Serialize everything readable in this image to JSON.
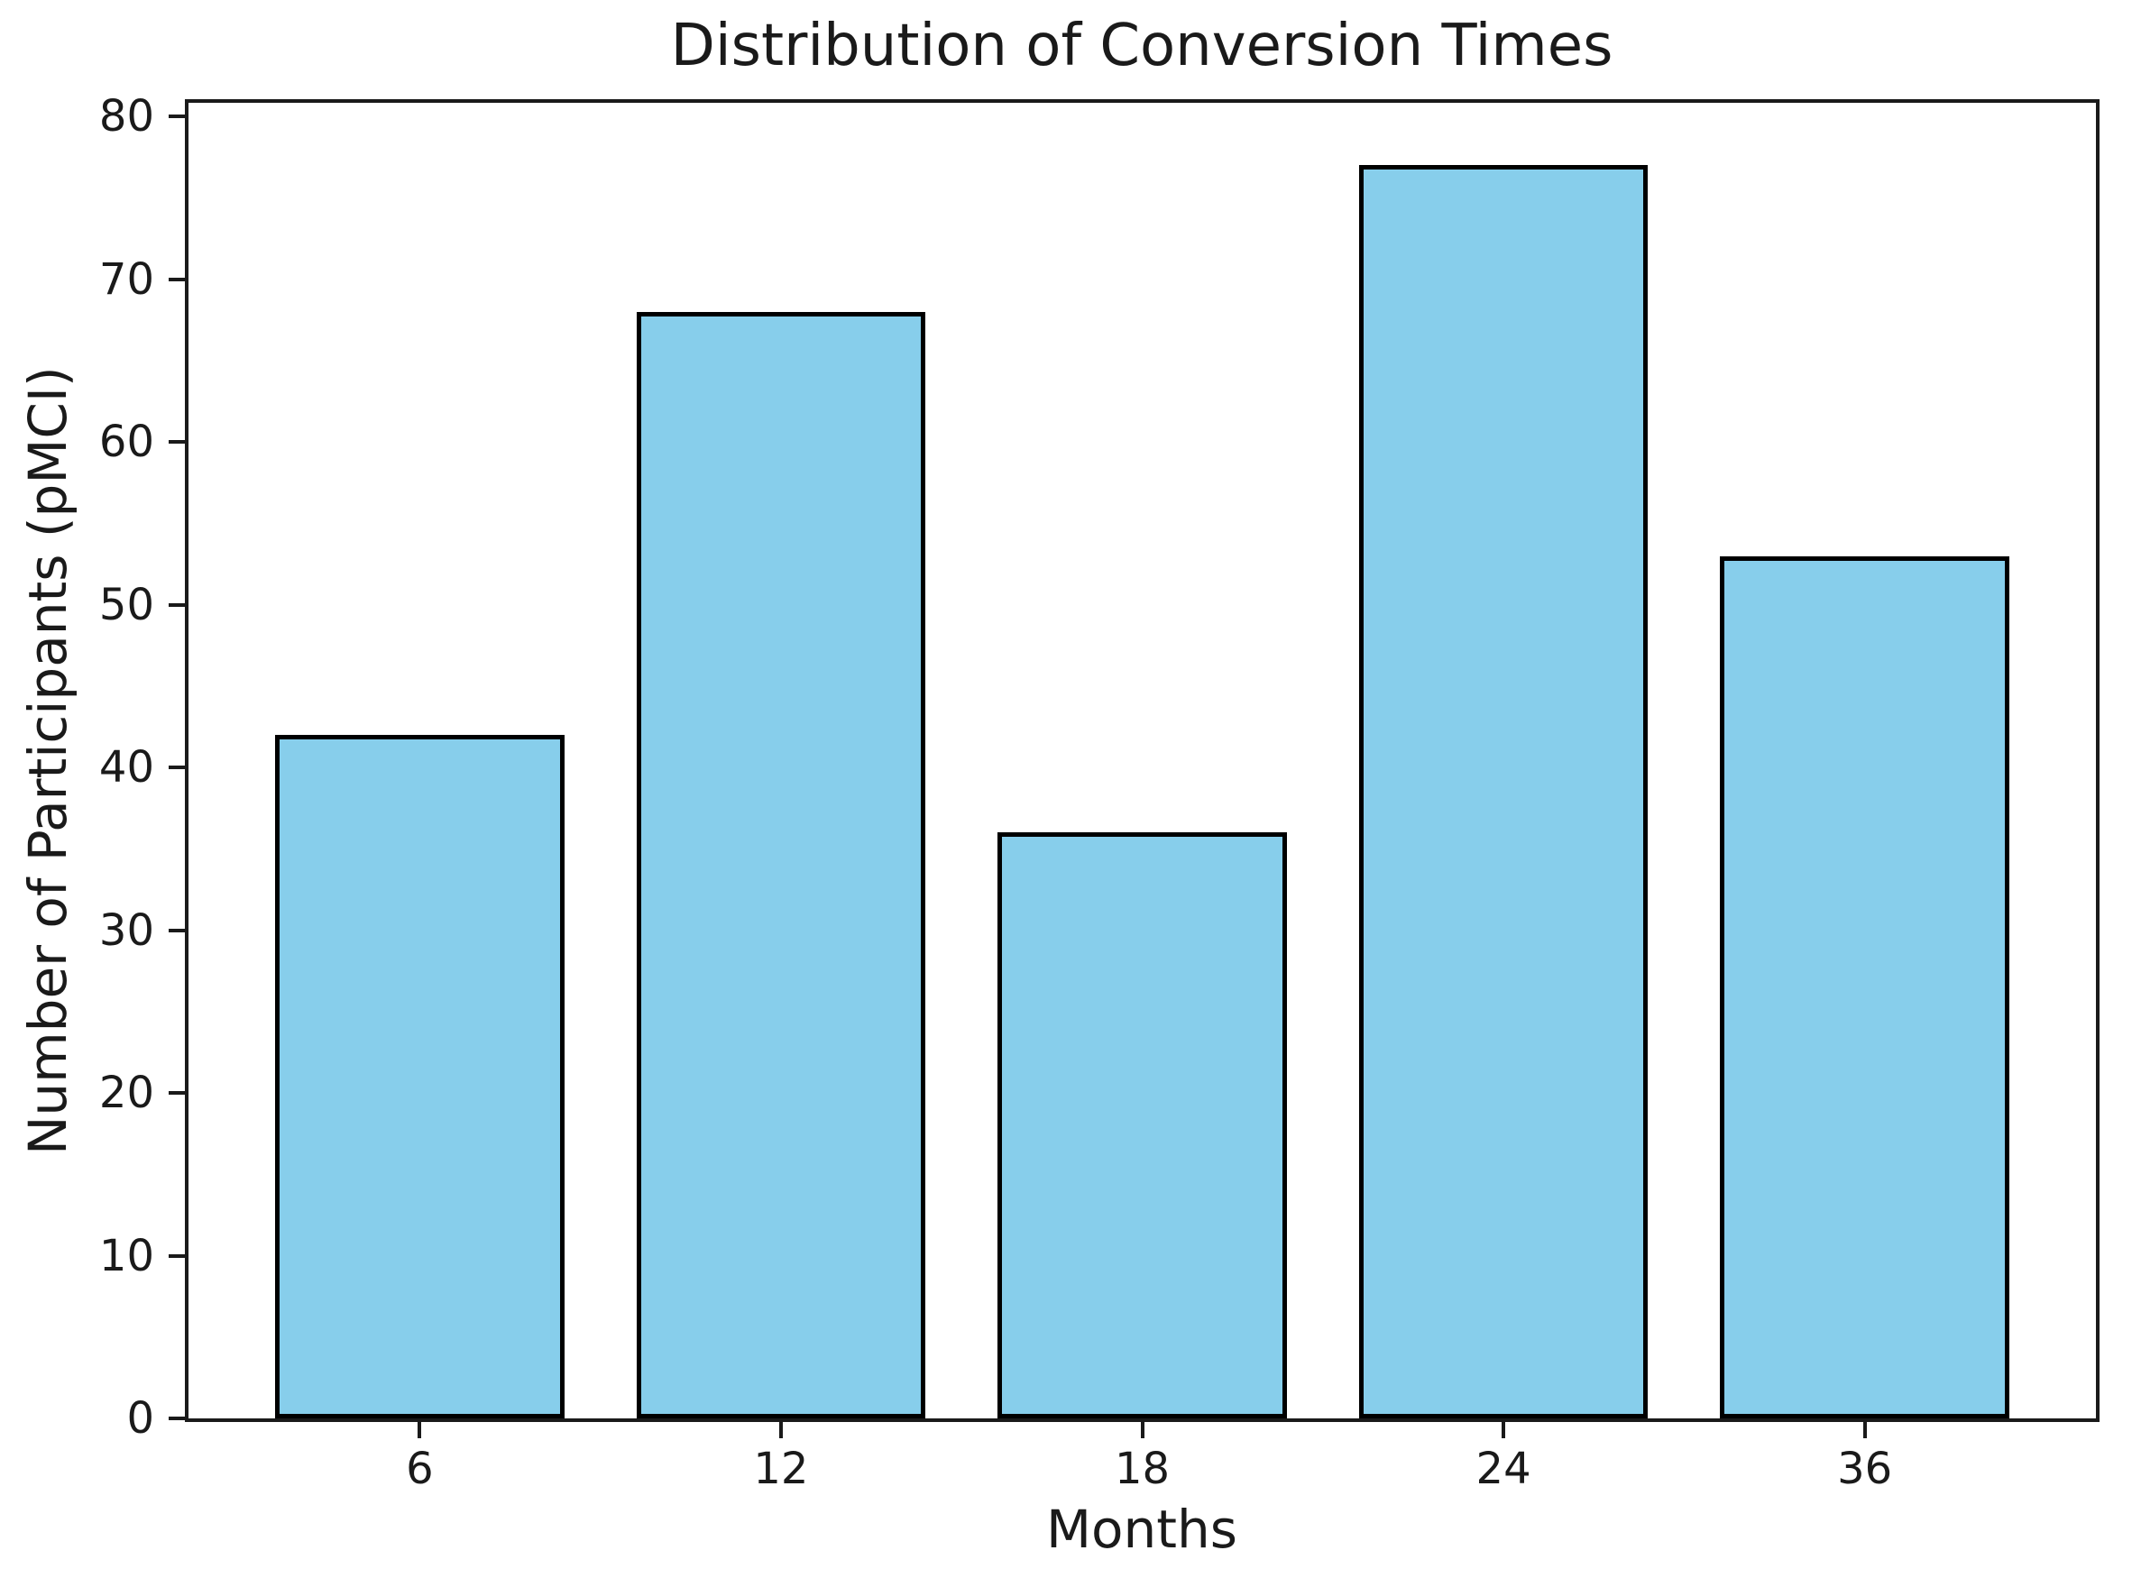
{
  "chart_data": {
    "type": "bar",
    "title": "Distribution of Conversion Times",
    "xlabel": "Months",
    "ylabel": "Number of Participants (pMCI)",
    "categories": [
      "6",
      "12",
      "18",
      "24",
      "36"
    ],
    "values": [
      42,
      68,
      36,
      77,
      53
    ],
    "y_ticks": [
      0,
      10,
      20,
      30,
      40,
      50,
      60,
      70,
      80
    ],
    "ylim": [
      0,
      80.85
    ],
    "xlim": [
      -0.64,
      4.64
    ],
    "bar_width": 0.8,
    "bar_color": "#87CEEB",
    "bar_edge_color": "#000000",
    "axis_color": "#1a1a1a",
    "grid": false,
    "legend": "none"
  }
}
